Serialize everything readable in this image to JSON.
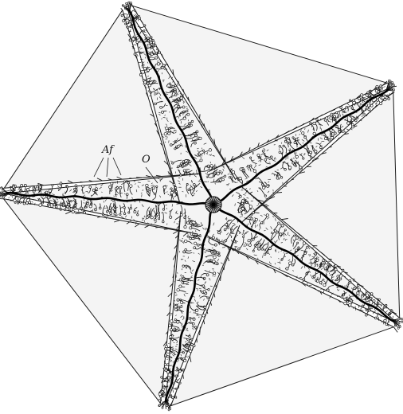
{
  "figure": {
    "labels": {
      "af": "Af",
      "o": "O"
    },
    "colors": {
      "ink": "#1a1a1a",
      "paper": "#ffffff",
      "groove": "#000000"
    },
    "subject_icon": "starfish-illustration"
  }
}
